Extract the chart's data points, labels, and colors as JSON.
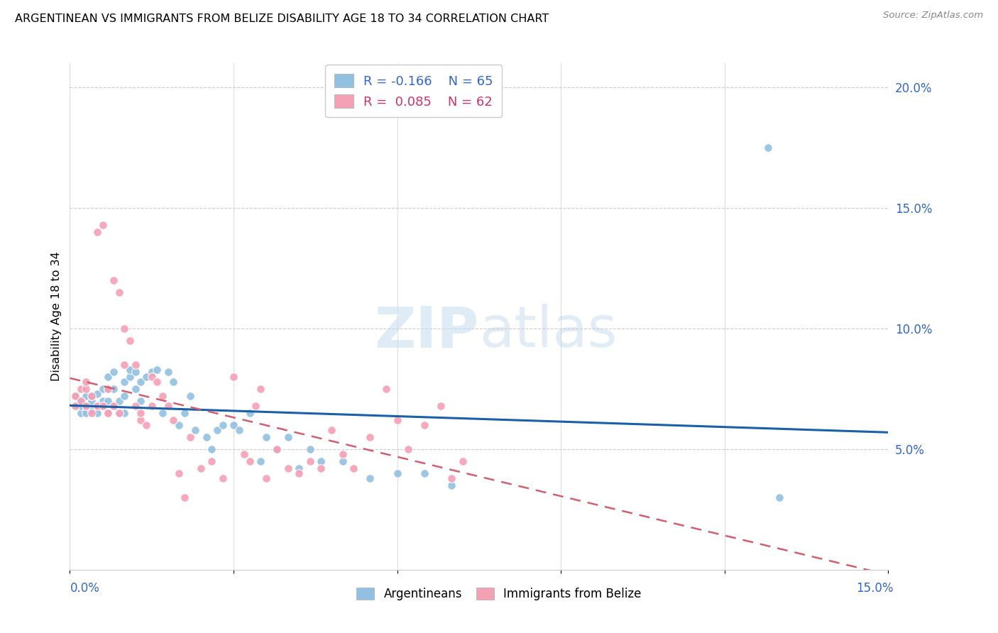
{
  "title": "ARGENTINEAN VS IMMIGRANTS FROM BELIZE DISABILITY AGE 18 TO 34 CORRELATION CHART",
  "source": "Source: ZipAtlas.com",
  "ylabel": "Disability Age 18 to 34",
  "right_yticklabels": [
    "5.0%",
    "10.0%",
    "15.0%",
    "20.0%"
  ],
  "right_ytick_vals": [
    0.05,
    0.1,
    0.15,
    0.2
  ],
  "xlim": [
    0.0,
    0.15
  ],
  "ylim": [
    0.0,
    0.21
  ],
  "watermark": "ZIPatlas",
  "legend_argentineans": "Argentineans",
  "legend_belize": "Immigrants from Belize",
  "color_arg": "#92c0e0",
  "color_bel": "#f4a0b5",
  "color_trendline_arg": "#1a5fa8",
  "color_trendline_bel": "#d06070",
  "color_text": "#3366cc",
  "arg_x": [
    0.001,
    0.001,
    0.002,
    0.002,
    0.002,
    0.003,
    0.003,
    0.003,
    0.004,
    0.004,
    0.004,
    0.005,
    0.005,
    0.005,
    0.006,
    0.006,
    0.006,
    0.007,
    0.007,
    0.007,
    0.008,
    0.008,
    0.008,
    0.009,
    0.009,
    0.01,
    0.01,
    0.01,
    0.011,
    0.011,
    0.012,
    0.012,
    0.013,
    0.013,
    0.014,
    0.015,
    0.016,
    0.017,
    0.018,
    0.019,
    0.02,
    0.021,
    0.022,
    0.023,
    0.025,
    0.026,
    0.027,
    0.028,
    0.03,
    0.031,
    0.033,
    0.035,
    0.036,
    0.038,
    0.04,
    0.042,
    0.044,
    0.046,
    0.05,
    0.055,
    0.06,
    0.065,
    0.07,
    0.128,
    0.13
  ],
  "arg_y": [
    0.068,
    0.072,
    0.065,
    0.07,
    0.068,
    0.072,
    0.068,
    0.065,
    0.07,
    0.066,
    0.072,
    0.068,
    0.065,
    0.073,
    0.068,
    0.07,
    0.075,
    0.07,
    0.08,
    0.075,
    0.068,
    0.075,
    0.082,
    0.07,
    0.065,
    0.078,
    0.072,
    0.065,
    0.08,
    0.083,
    0.075,
    0.082,
    0.078,
    0.07,
    0.08,
    0.082,
    0.083,
    0.065,
    0.082,
    0.078,
    0.06,
    0.065,
    0.072,
    0.058,
    0.055,
    0.05,
    0.058,
    0.06,
    0.06,
    0.058,
    0.065,
    0.045,
    0.055,
    0.05,
    0.055,
    0.042,
    0.05,
    0.045,
    0.045,
    0.038,
    0.04,
    0.04,
    0.035,
    0.175,
    0.03
  ],
  "bel_x": [
    0.001,
    0.001,
    0.002,
    0.002,
    0.003,
    0.003,
    0.003,
    0.004,
    0.004,
    0.005,
    0.005,
    0.006,
    0.006,
    0.007,
    0.007,
    0.007,
    0.008,
    0.008,
    0.009,
    0.009,
    0.01,
    0.01,
    0.011,
    0.012,
    0.012,
    0.013,
    0.013,
    0.014,
    0.015,
    0.015,
    0.016,
    0.017,
    0.018,
    0.019,
    0.02,
    0.021,
    0.022,
    0.024,
    0.026,
    0.028,
    0.03,
    0.032,
    0.033,
    0.034,
    0.035,
    0.036,
    0.038,
    0.04,
    0.042,
    0.044,
    0.046,
    0.048,
    0.05,
    0.052,
    0.055,
    0.058,
    0.06,
    0.062,
    0.065,
    0.068,
    0.07,
    0.072
  ],
  "bel_y": [
    0.068,
    0.072,
    0.075,
    0.07,
    0.075,
    0.078,
    0.068,
    0.065,
    0.072,
    0.068,
    0.14,
    0.143,
    0.068,
    0.065,
    0.075,
    0.065,
    0.068,
    0.12,
    0.115,
    0.065,
    0.1,
    0.085,
    0.095,
    0.085,
    0.068,
    0.062,
    0.065,
    0.06,
    0.08,
    0.068,
    0.078,
    0.072,
    0.068,
    0.062,
    0.04,
    0.03,
    0.055,
    0.042,
    0.045,
    0.038,
    0.08,
    0.048,
    0.045,
    0.068,
    0.075,
    0.038,
    0.05,
    0.042,
    0.04,
    0.045,
    0.042,
    0.058,
    0.048,
    0.042,
    0.055,
    0.075,
    0.062,
    0.05,
    0.06,
    0.068,
    0.038,
    0.045
  ]
}
